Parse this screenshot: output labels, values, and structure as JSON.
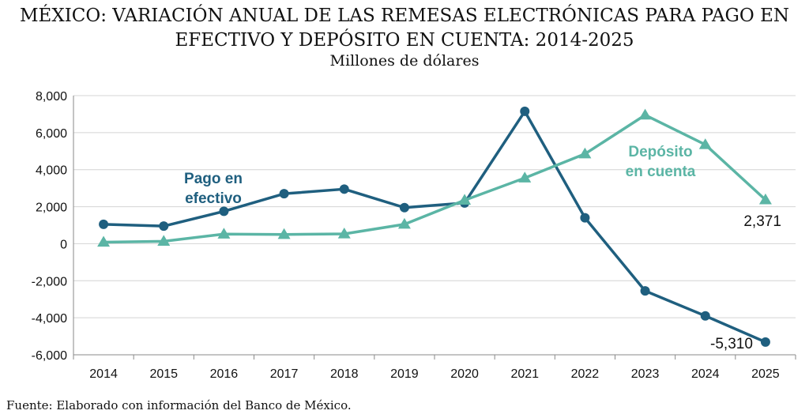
{
  "chart_data": {
    "type": "line",
    "title_line1": "MÉXICO: VARIACIÓN ANUAL DE LAS REMESAS ELECTRÓNICAS PARA PAGO EN",
    "title_line2": "EFECTIVO Y DEPÓSITO EN CUENTA: 2014-2025",
    "subtitle": "Millones de dólares",
    "source": "Fuente: Elaborado con información del Banco de México.",
    "x": [
      "2014",
      "2015",
      "2016",
      "2017",
      "2018",
      "2019",
      "2020",
      "2021",
      "2022",
      "2023",
      "2024",
      "2025"
    ],
    "ylim": [
      -6000,
      8000
    ],
    "yticks": [
      8000,
      6000,
      4000,
      2000,
      0,
      -2000,
      -4000,
      -6000
    ],
    "ytick_labels": [
      "8,000",
      "6,000",
      "4,000",
      "2,000",
      "0",
      "-2,000",
      "-4,000",
      "-6,000"
    ],
    "grid": true,
    "series": [
      {
        "name_line1": "Pago en",
        "name_line2": "efectivo",
        "color": "#1f5f7f",
        "marker": "circle",
        "values": [
          1050,
          950,
          1750,
          2700,
          2950,
          1950,
          2200,
          7150,
          1400,
          -2550,
          -3900,
          -5310
        ],
        "end_label": "-5,310"
      },
      {
        "name_line1": "Depósito",
        "name_line2": "en cuenta",
        "color": "#5bb5a5",
        "marker": "triangle",
        "values": [
          80,
          130,
          520,
          500,
          530,
          1050,
          2350,
          3550,
          4850,
          6950,
          5350,
          2371
        ],
        "end_label": "2,371"
      }
    ]
  }
}
